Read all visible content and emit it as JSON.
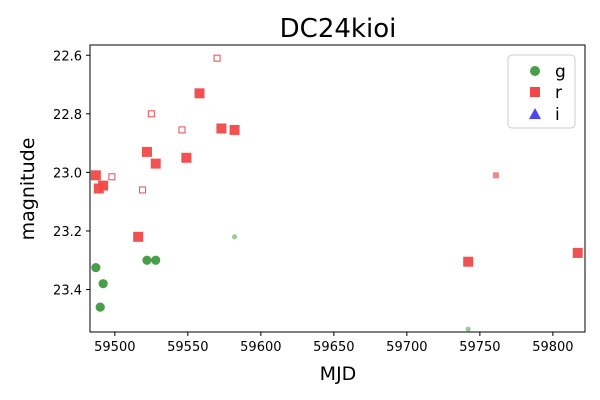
{
  "chart_data": {
    "type": "scatter",
    "title": "DC24kioi",
    "xlabel": "MJD",
    "ylabel": "magnitude",
    "xlim": [
      59483,
      59822
    ],
    "ylim": [
      23.545,
      22.565
    ],
    "y_inverted": true,
    "grid": false,
    "legend_placement": "top-right",
    "xticks": [
      59500,
      59550,
      59600,
      59650,
      59700,
      59750,
      59800
    ],
    "yticks": [
      22.6,
      22.8,
      23.0,
      23.2,
      23.4
    ],
    "legend": [
      {
        "label": "g",
        "marker": "circle",
        "color": "#4a9e4a"
      },
      {
        "label": "r",
        "marker": "square",
        "color": "#f04848"
      },
      {
        "label": "i",
        "marker": "triangle",
        "color": "#4a4af0"
      }
    ],
    "series": [
      {
        "name": "g",
        "color": "#4a9e4a",
        "marker": "circle",
        "style": "filled",
        "points": [
          {
            "x": 59487,
            "y": 23.325
          },
          {
            "x": 59492,
            "y": 23.38
          },
          {
            "x": 59490,
            "y": 23.46
          },
          {
            "x": 59522,
            "y": 23.3
          },
          {
            "x": 59528,
            "y": 23.3
          }
        ]
      },
      {
        "name": "g",
        "color": "#4a9e4a",
        "marker": "circle",
        "style": "faint",
        "points": [
          {
            "x": 59582,
            "y": 23.22
          },
          {
            "x": 59742,
            "y": 23.535
          }
        ]
      },
      {
        "name": "r",
        "color": "#f04848",
        "marker": "square",
        "style": "filled",
        "points": [
          {
            "x": 59487,
            "y": 23.01
          },
          {
            "x": 59489,
            "y": 23.055
          },
          {
            "x": 59492,
            "y": 23.045
          },
          {
            "x": 59516,
            "y": 23.22
          },
          {
            "x": 59522,
            "y": 22.93
          },
          {
            "x": 59528,
            "y": 22.97
          },
          {
            "x": 59549,
            "y": 22.95
          },
          {
            "x": 59558,
            "y": 22.73
          },
          {
            "x": 59573,
            "y": 22.85
          },
          {
            "x": 59582,
            "y": 22.855
          },
          {
            "x": 59742,
            "y": 23.305
          },
          {
            "x": 59817,
            "y": 23.275
          }
        ]
      },
      {
        "name": "r",
        "color": "#f04848",
        "marker": "square",
        "style": "open",
        "points": [
          {
            "x": 59498,
            "y": 23.015
          },
          {
            "x": 59519,
            "y": 23.06
          },
          {
            "x": 59525,
            "y": 22.8
          },
          {
            "x": 59546,
            "y": 22.855
          },
          {
            "x": 59570,
            "y": 22.61
          }
        ]
      },
      {
        "name": "r",
        "color": "#f08888",
        "marker": "square",
        "style": "faint",
        "points": [
          {
            "x": 59761,
            "y": 23.01
          }
        ]
      }
    ]
  }
}
